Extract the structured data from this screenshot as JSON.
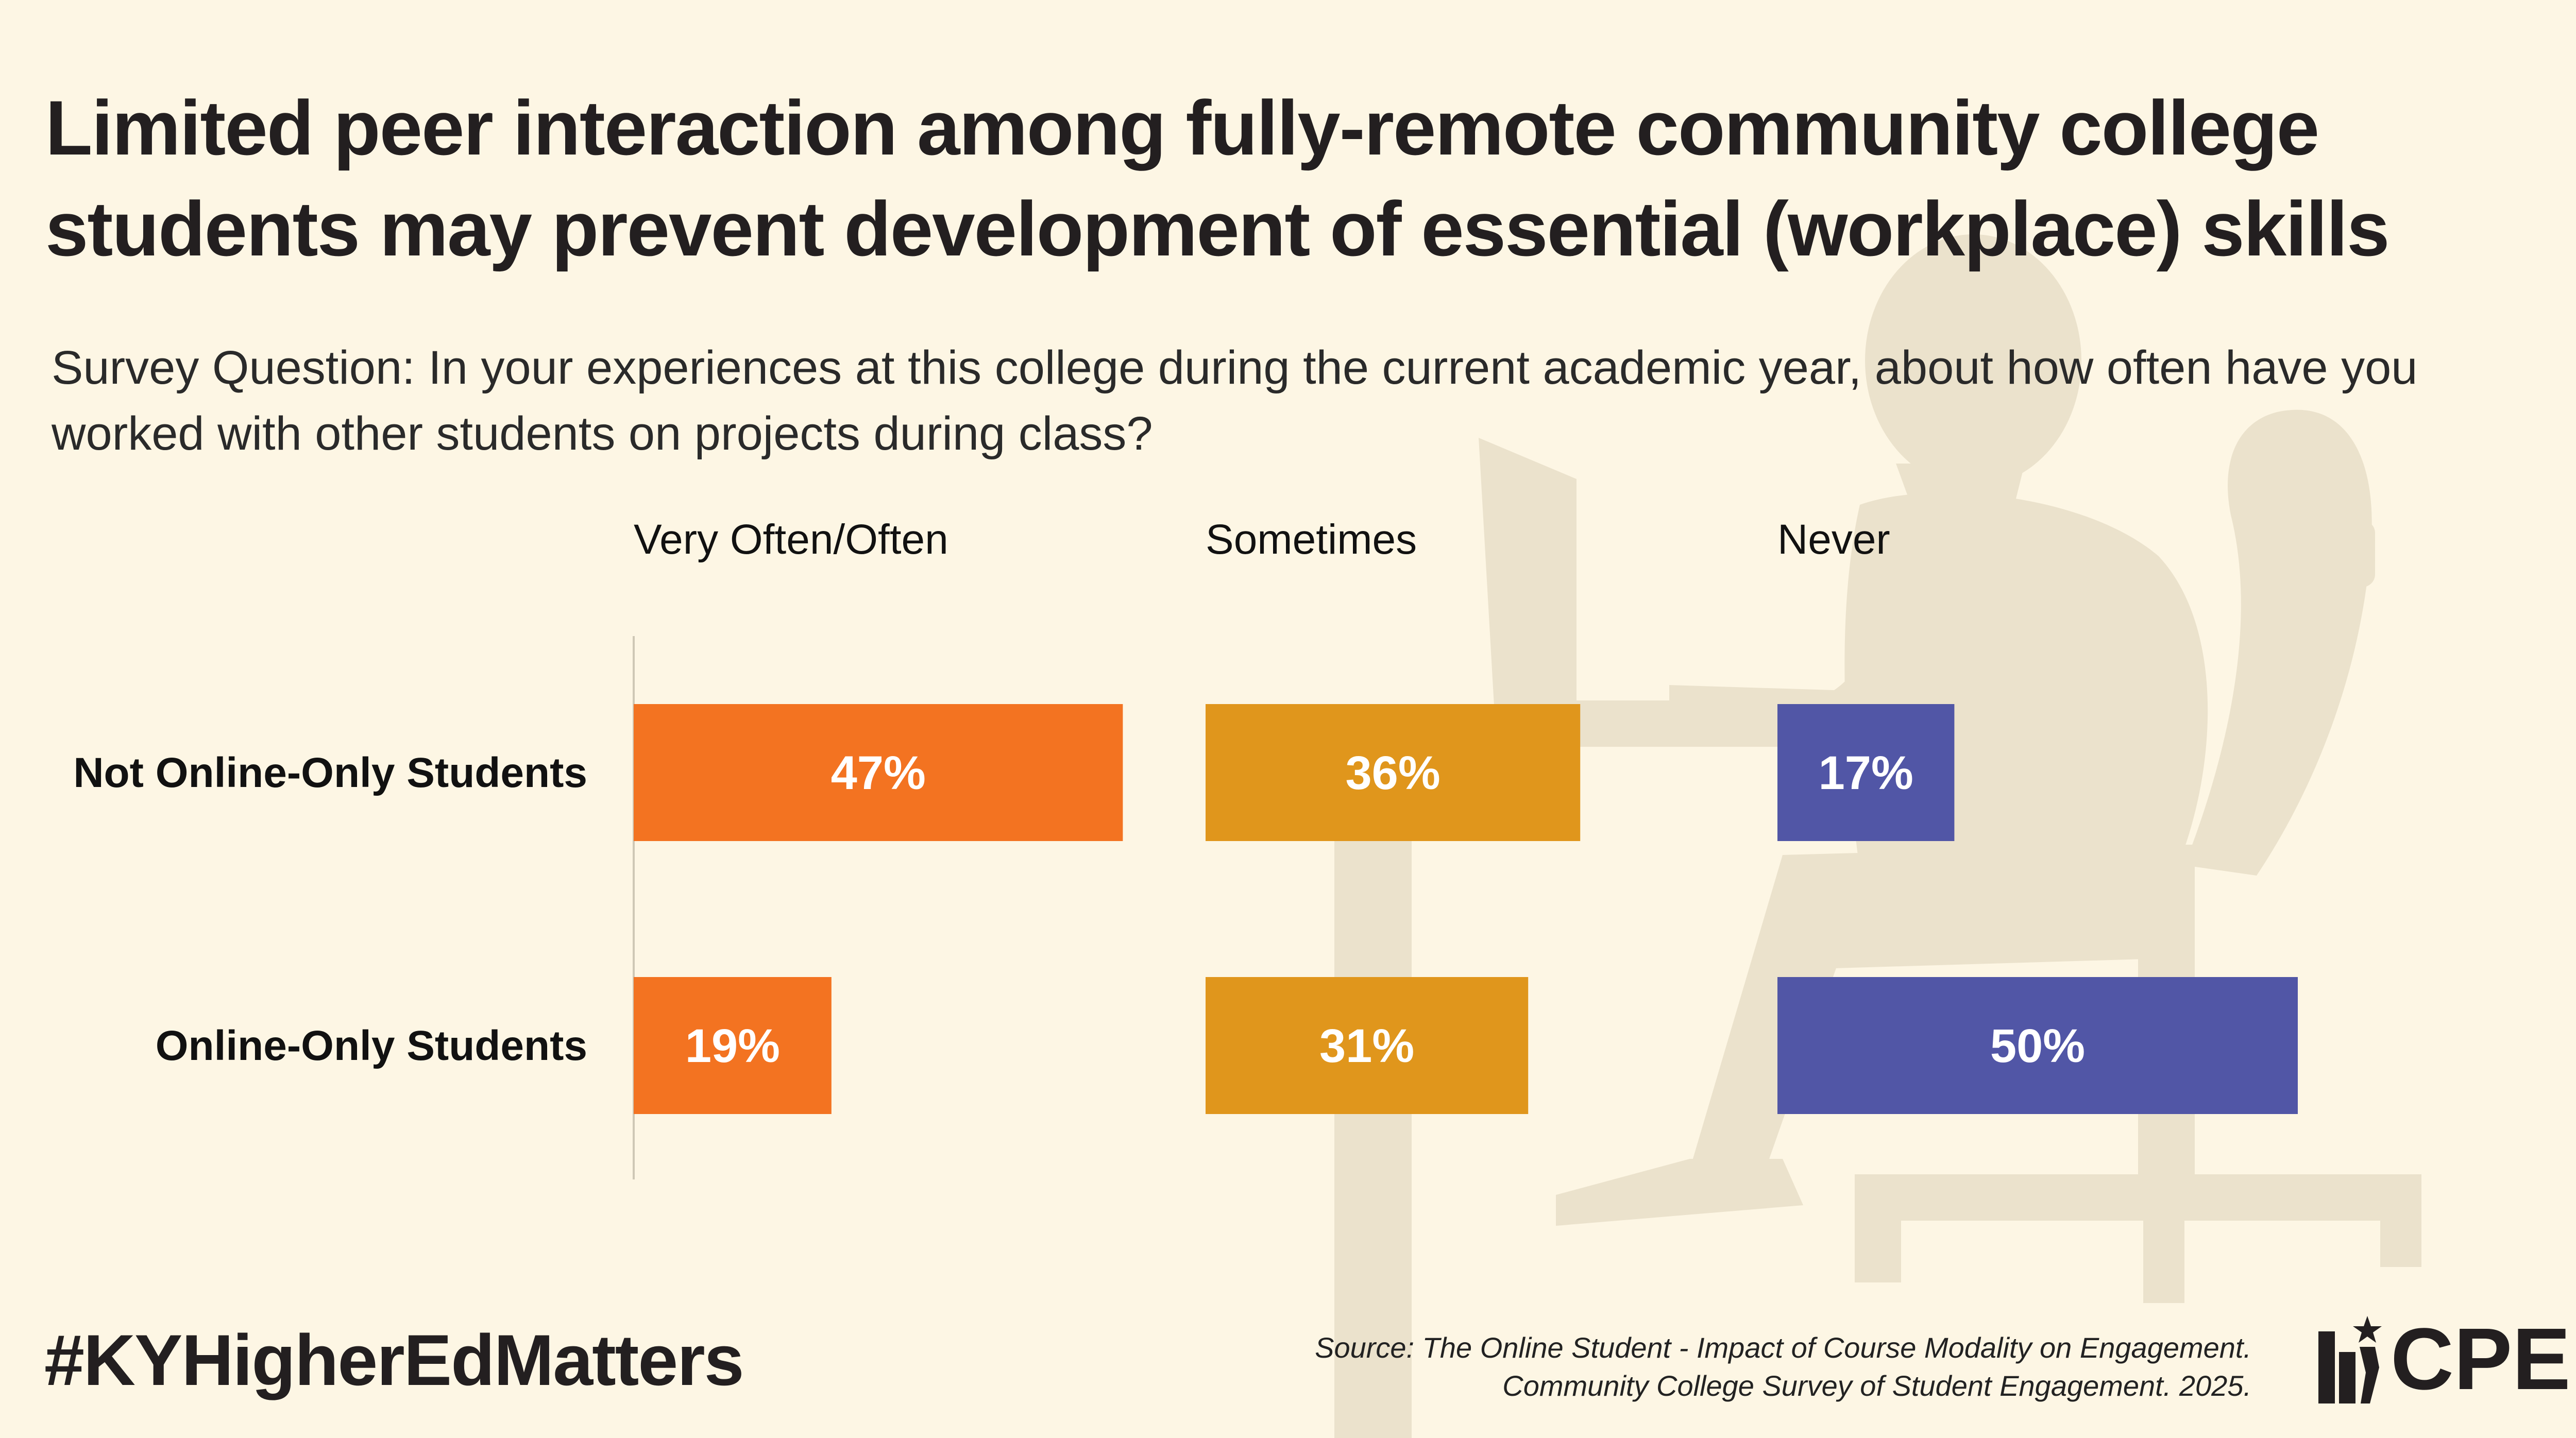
{
  "title": "Limited peer interaction among fully-remote community college students may prevent development of essential (workplace) skills",
  "subtitle": "Survey Question: In your experiences at this college during the current academic year, about how often have you worked with other students on projects during class?",
  "footer": {
    "hashtag": "#KYHigherEdMatters",
    "source_line1": "Source: The Online Student - Impact of Course Modality on Engagement.",
    "source_line2": "Community College Survey of Student Engagement. 2025.",
    "logo_text": "CPE"
  },
  "colors": {
    "background": "#fdf6e4",
    "silhouette": "#ebe2cc",
    "very_often": "#f37321",
    "sometimes": "#e0961c",
    "never": "#5156a6"
  },
  "chart_data": {
    "type": "bar",
    "orientation": "horizontal",
    "categories": [
      "Not Online-Only Students",
      "Online-Only Students"
    ],
    "series": [
      {
        "name": "Very Often/Often",
        "values": [
          47,
          19
        ],
        "labels": [
          "47%",
          "19%"
        ],
        "color": "#f37321"
      },
      {
        "name": "Sometimes",
        "values": [
          36,
          31
        ],
        "labels": [
          "36%",
          "31%"
        ],
        "color": "#e0961c"
      },
      {
        "name": "Never",
        "values": [
          17,
          50
        ],
        "labels": [
          "17%",
          "50%"
        ],
        "color": "#5156a6"
      }
    ],
    "unit": "%",
    "legend": "top (column headers)",
    "grid": false
  }
}
